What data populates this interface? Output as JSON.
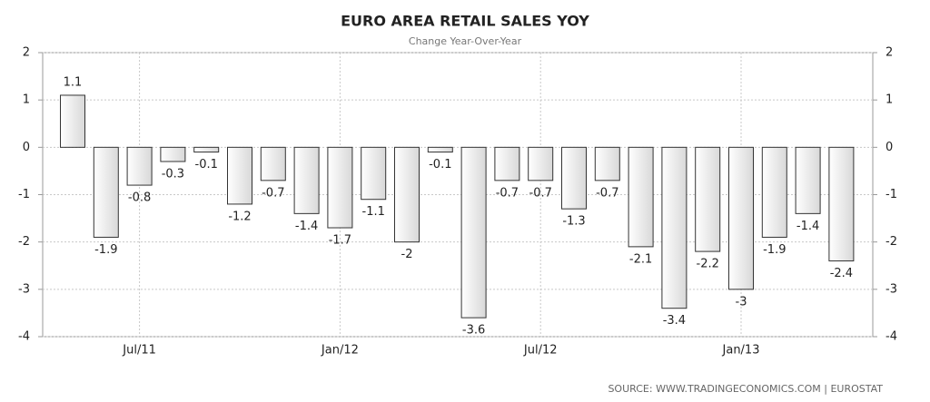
{
  "chart_data": {
    "type": "bar",
    "title": "EURO AREA RETAIL SALES YOY",
    "subtitle": "Change Year-Over-Year",
    "source": "SOURCE:  WWW.TRADINGECONOMICS.COM  |  EUROSTAT",
    "categories": [
      null,
      null,
      "Jul/11",
      null,
      null,
      null,
      null,
      null,
      "Jan/12",
      null,
      null,
      null,
      null,
      null,
      "Jul/12",
      null,
      null,
      null,
      null,
      null,
      "Jan/13",
      null,
      null,
      null
    ],
    "values": [
      1.1,
      -1.9,
      -0.8,
      -0.3,
      -0.1,
      -1.2,
      -0.7,
      -1.4,
      -1.7,
      -1.1,
      -2,
      -0.1,
      -3.6,
      -0.7,
      -0.7,
      -1.3,
      -0.7,
      -2.1,
      -3.4,
      -2.2,
      -3,
      -1.9,
      -1.4,
      -2.4
    ],
    "color": "#d8d8d8",
    "ylim": [
      -4,
      2
    ],
    "yticks": [
      -4,
      -3,
      -2,
      -1,
      0,
      1,
      2
    ],
    "grid": true
  }
}
